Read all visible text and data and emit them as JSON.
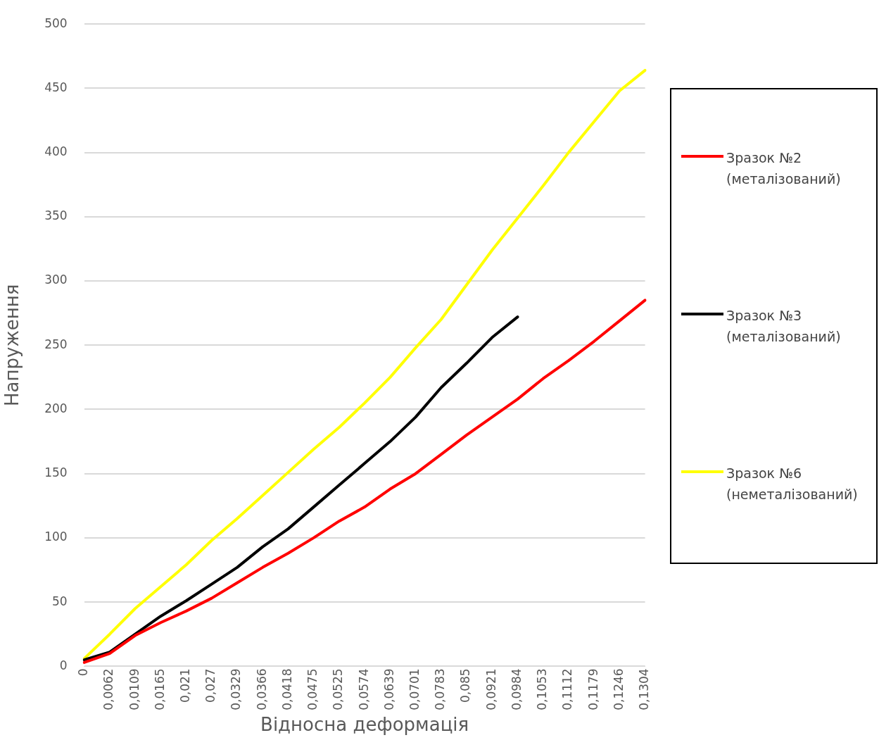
{
  "chart_data": {
    "type": "line",
    "xlabel": "Відносна деформація",
    "ylabel": "Напруження",
    "categories": [
      "0",
      "0,0062",
      "0,0109",
      "0,0165",
      "0,021",
      "0,027",
      "0,0329",
      "0,0366",
      "0,0418",
      "0,0475",
      "0,0525",
      "0,0574",
      "0,0639",
      "0,0701",
      "0,0783",
      "0,085",
      "0,0921",
      "0,0984",
      "0,1053",
      "0,1112",
      "0,1179",
      "0,1246",
      "0,1304"
    ],
    "series": [
      {
        "name": "Зразок №2 (металізований)",
        "color": "#ff0000",
        "values": [
          3,
          10,
          24,
          34,
          43,
          53,
          65,
          77,
          88,
          100,
          113,
          124,
          138,
          150,
          165,
          180,
          194,
          208,
          224,
          238,
          253,
          269,
          285
        ]
      },
      {
        "name": "Зразок №3 (металізований)",
        "color": "#000000",
        "values": [
          5,
          11,
          25,
          39,
          51,
          64,
          77,
          93,
          107,
          124,
          141,
          158,
          175,
          194,
          217,
          236,
          256,
          272,
          null,
          null,
          null,
          null,
          null
        ]
      },
      {
        "name": "Зразок №6 (неметалізований)",
        "color": "#ffff00",
        "values": [
          6,
          25,
          45,
          62,
          79,
          98,
          115,
          133,
          151,
          169,
          186,
          205,
          225,
          248,
          270,
          297,
          324,
          349,
          374,
          400,
          424,
          448,
          464
        ]
      }
    ],
    "ylim": [
      0,
      500
    ],
    "yticks": [
      0,
      50,
      100,
      150,
      200,
      250,
      300,
      350,
      400,
      450,
      500
    ],
    "grid": "y",
    "legend": "right",
    "marker": "none",
    "line_style": "solid"
  }
}
